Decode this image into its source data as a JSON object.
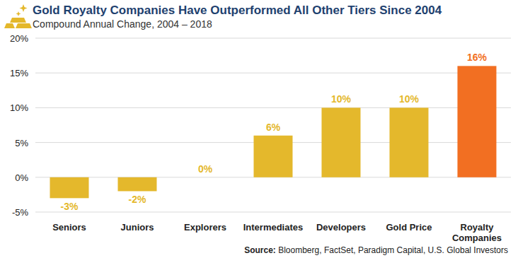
{
  "chart_data": {
    "type": "bar",
    "title": "Gold Royalty Companies Have Outperformed All Other Tiers Since 2004",
    "subtitle": "Compound Annual Change, 2004 – 2018",
    "source": "Source: Bloomberg, FactSet, Paradigm Capital, U.S. Global Investors",
    "categories": [
      "Seniors",
      "Juniors",
      "Explorers",
      "Intermediates",
      "Developers",
      "Gold Price",
      "Royalty Companies"
    ],
    "values": [
      -3,
      -2,
      0,
      6,
      10,
      10,
      16
    ],
    "value_labels": [
      "-3%",
      "-2%",
      "0%",
      "6%",
      "10%",
      "10%",
      "16%"
    ],
    "colors": [
      "#e4b82c",
      "#e4b82c",
      "#e4b82c",
      "#e4b82c",
      "#e4b82c",
      "#e4b82c",
      "#f26f22"
    ],
    "ylim": [
      -5,
      20
    ],
    "yticks": [
      {
        "value": -5,
        "label": "-5%"
      },
      {
        "value": 0,
        "label": "0%"
      },
      {
        "value": 5,
        "label": "5%"
      },
      {
        "value": 10,
        "label": "10%"
      },
      {
        "value": 15,
        "label": "15%"
      },
      {
        "value": 20,
        "label": "20%"
      }
    ],
    "grid": true,
    "data_labels": true
  }
}
